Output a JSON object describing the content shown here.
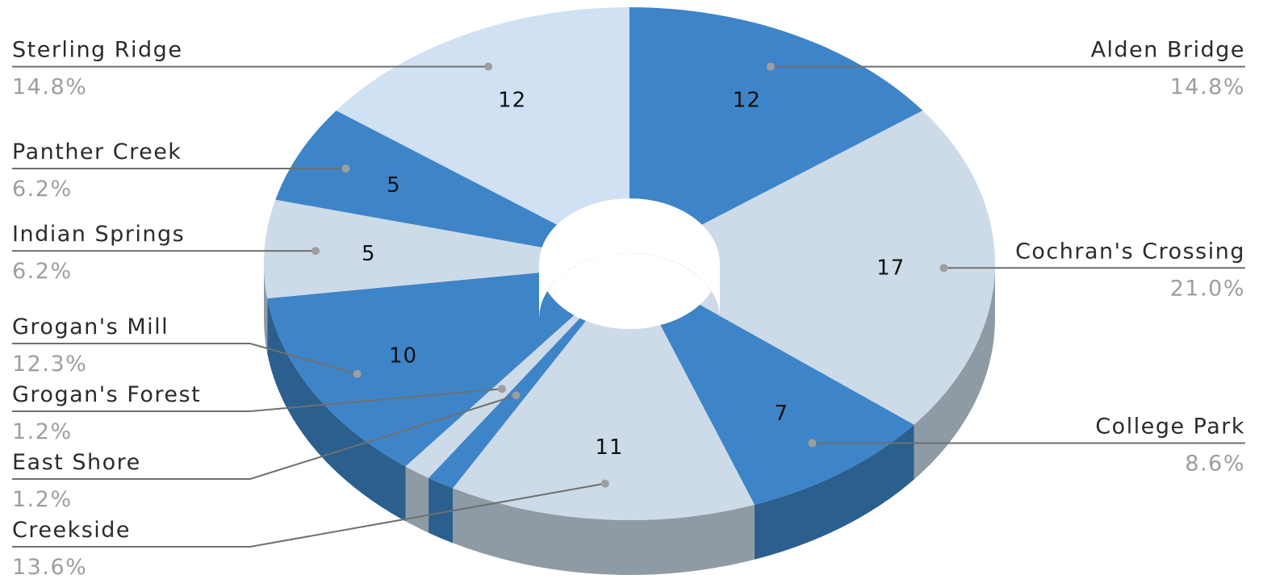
{
  "chart_data": {
    "type": "pie",
    "style": "3d-donut",
    "colors": {
      "dark_top": "#3e84c8",
      "dark_side": "#2b5f8e",
      "light_top_a": "#cfe1f3",
      "light_top_b": "#cddbe8",
      "light_side": "#8e9ba5"
    },
    "slices": [
      {
        "label": "Alden Bridge",
        "value": 12,
        "percent": "14.8%",
        "shade": "dark"
      },
      {
        "label": "Cochran's Crossing",
        "value": 17,
        "percent": "21.0%",
        "shade": "light"
      },
      {
        "label": "College Park",
        "value": 7,
        "percent": "8.6%",
        "shade": "dark"
      },
      {
        "label": "Creekside",
        "value": 11,
        "percent": "13.6%",
        "shade": "light"
      },
      {
        "label": "East Shore",
        "value": 1,
        "percent": "1.2%",
        "shade": "dark"
      },
      {
        "label": "Grogan's Forest",
        "value": 1,
        "percent": "1.2%",
        "shade": "light"
      },
      {
        "label": "Grogan's Mill",
        "value": 10,
        "percent": "12.3%",
        "shade": "dark"
      },
      {
        "label": "Indian Springs",
        "value": 5,
        "percent": "6.2%",
        "shade": "light"
      },
      {
        "label": "Panther Creek",
        "value": 5,
        "percent": "6.2%",
        "shade": "dark"
      },
      {
        "label": "Sterling Ridge",
        "value": 12,
        "percent": "14.8%",
        "shade": "light"
      }
    ]
  }
}
